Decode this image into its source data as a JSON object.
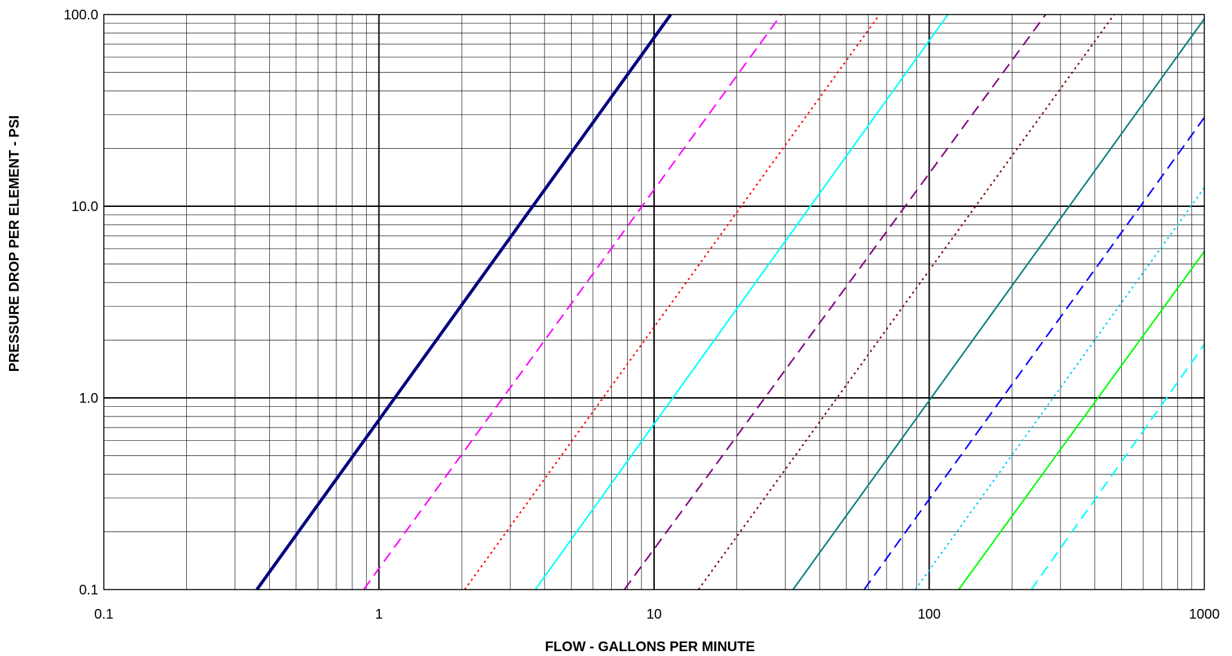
{
  "chart_data": {
    "type": "line",
    "title": "",
    "xlabel": "FLOW - GALLONS PER MINUTE",
    "ylabel": "PRESSURE DROP PER ELEMENT - PSI",
    "xscale": "log",
    "yscale": "log",
    "xlim": [
      0.1,
      1000
    ],
    "ylim": [
      0.1,
      100
    ],
    "x_tick_labels": [
      "0.1",
      "1",
      "10",
      "100",
      "1000"
    ],
    "y_tick_labels": [
      "0.1",
      "1.0",
      "10.0",
      "100.0"
    ],
    "grid": true,
    "legend": "none",
    "series": [
      {
        "color": "#000080",
        "style": "solid",
        "x": [
          0.36,
          11.5
        ],
        "y": [
          0.1,
          100
        ]
      },
      {
        "color": "#ff00ff",
        "style": "dashed",
        "x": [
          0.88,
          29
        ],
        "y": [
          0.1,
          100
        ]
      },
      {
        "color": "#ff0000",
        "style": "dotted",
        "x": [
          2.05,
          66
        ],
        "y": [
          0.1,
          100
        ]
      },
      {
        "color": "#00ffff",
        "style": "solid",
        "x": [
          3.7,
          117
        ],
        "y": [
          0.1,
          100
        ]
      },
      {
        "color": "#800080",
        "style": "dashed",
        "x": [
          7.8,
          265
        ],
        "y": [
          0.1,
          100
        ]
      },
      {
        "color": "#800000",
        "style": "dotted",
        "x": [
          14.5,
          470
        ],
        "y": [
          0.1,
          100
        ]
      },
      {
        "color": "#008080",
        "style": "solid",
        "x": [
          32,
          1000
        ],
        "y": [
          0.1,
          95
        ]
      },
      {
        "color": "#0000ff",
        "style": "dashed",
        "x": [
          58,
          1000
        ],
        "y": [
          0.1,
          29
        ]
      },
      {
        "color": "#00ccff",
        "style": "dotted",
        "x": [
          89,
          1000
        ],
        "y": [
          0.1,
          12.5
        ]
      },
      {
        "color": "#00ff00",
        "style": "solid",
        "x": [
          128,
          1000
        ],
        "y": [
          0.1,
          5.8
        ]
      },
      {
        "color": "#00ffff",
        "style": "dashed",
        "x": [
          235,
          1000
        ],
        "y": [
          0.1,
          1.9
        ]
      }
    ]
  }
}
